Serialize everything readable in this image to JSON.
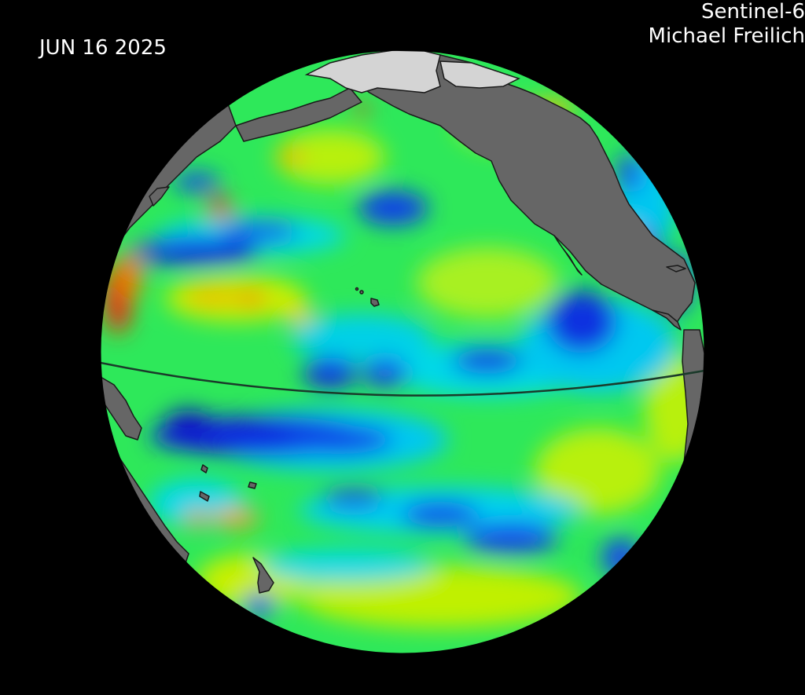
{
  "date": "JUN 16 2025",
  "satellite_line1": "Sentinel-6",
  "satellite_line2": "Michael Freilich",
  "colors": {
    "background": "#000000",
    "land": "#666666",
    "ice": "#d4d4d4",
    "ocean_base": "#2ee85a",
    "anomaly_low": "#0018d8",
    "anomaly_mid_low": "#00c8f0",
    "anomaly_mid": "#22e85a",
    "anomaly_mid_high": "#d8f000",
    "anomaly_high": "#e81010",
    "equator_line": "#1a3a2a"
  }
}
